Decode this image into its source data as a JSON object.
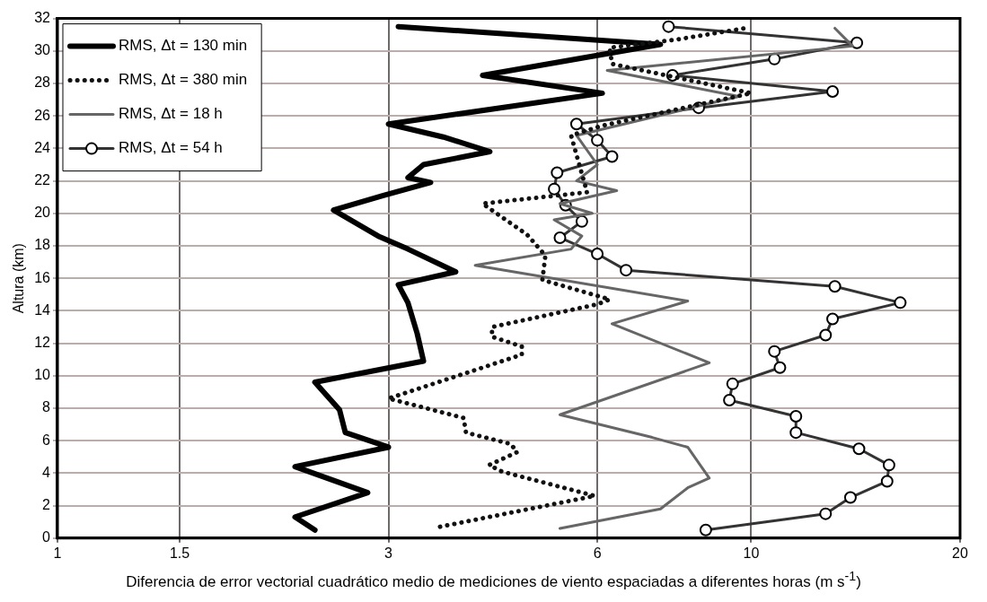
{
  "chart_data": {
    "type": "line",
    "xlabel": "Diferencia de error vectorial cuadrático medio de mediciones de viento espaciadas a diferentes horas (m s$^{-1}$)",
    "ylabel": "Altura (km)",
    "log": "x",
    "xlim": [
      1,
      20
    ],
    "xticks": [
      1,
      1.5,
      3,
      6,
      10,
      20
    ],
    "ylim": [
      0,
      32
    ],
    "yticks": [
      0,
      2,
      4,
      6,
      8,
      10,
      12,
      14,
      16,
      18,
      20,
      22,
      24,
      26,
      28,
      30,
      32
    ],
    "grid": true,
    "legend": "top left",
    "series": [
      {
        "name": "RMS, Δt = 130 min",
        "color": "#000000",
        "line_style": "solid",
        "marker": "none",
        "x": [
          2.35,
          2.2,
          2.8,
          2.2,
          3.0,
          2.6,
          2.55,
          2.35,
          3.37,
          3.3,
          3.2,
          3.1,
          3.75,
          3.2,
          2.9,
          2.5,
          2.95,
          3.45,
          3.2,
          3.37,
          4.2,
          3.6,
          3.0,
          6.1,
          4.1,
          7.4,
          3.1
        ],
        "values": [
          0.5,
          1.3,
          2.8,
          4.4,
          5.6,
          6.5,
          7.9,
          9.6,
          10.9,
          12.6,
          14.5,
          15.6,
          16.4,
          17.8,
          18.6,
          20.2,
          21.1,
          21.9,
          22.2,
          23.0,
          23.8,
          24.7,
          25.5,
          27.4,
          28.5,
          30.4,
          31.5
        ]
      },
      {
        "name": "RMS, Δt = 380 min",
        "color": "#111111",
        "line_style": "dotted",
        "marker": "none",
        "x": [
          3.56,
          5.95,
          4.37,
          4.19,
          4.6,
          4.5,
          3.88,
          3.85,
          3.0,
          3.84,
          4.67,
          4.67,
          4.23,
          4.23,
          6.0,
          6.25,
          5.7,
          5.0,
          5.05,
          4.75,
          4.36,
          4.1,
          5.0,
          5.8,
          5.6,
          5.5,
          6.1,
          10.0,
          6.3,
          6.25,
          7.8,
          9.8
        ],
        "values": [
          0.7,
          2.6,
          4.1,
          4.5,
          5.3,
          5.8,
          6.5,
          7.4,
          8.6,
          10.1,
          11.3,
          11.8,
          12.4,
          13.0,
          14.4,
          14.7,
          15.2,
          15.9,
          17.4,
          18.7,
          19.8,
          20.6,
          21.0,
          21.3,
          23.6,
          24.8,
          25.4,
          27.4,
          29.2,
          30.2,
          30.7,
          31.4
        ]
      },
      {
        "name": "RMS, Δt = 18 h",
        "color": "#666666",
        "line_style": "solid",
        "marker": "none",
        "x": [
          5.3,
          7.4,
          8.1,
          8.7,
          8.1,
          7.2,
          5.3,
          8.7,
          6.3,
          8.1,
          4.0,
          5.5,
          5.7,
          5.2,
          5.9,
          5.3,
          6.4,
          5.6,
          6.0,
          5.6,
          9.6,
          6.2,
          14.0,
          13.2
        ],
        "values": [
          0.6,
          1.8,
          3.1,
          3.7,
          5.6,
          6.2,
          7.6,
          10.8,
          13.2,
          14.6,
          16.8,
          17.8,
          18.6,
          19.6,
          20.0,
          20.6,
          21.4,
          22.0,
          23.0,
          24.8,
          27.2,
          28.8,
          30.3,
          31.4
        ]
      },
      {
        "name": "RMS, Δt = 54 h",
        "color": "#333333",
        "line_style": "solid",
        "marker": "circle",
        "x": [
          8.6,
          12.8,
          13.9,
          15.7,
          15.8,
          14.3,
          11.6,
          11.6,
          9.3,
          9.4,
          11.0,
          10.8,
          12.8,
          13.1,
          16.4,
          13.2,
          6.6,
          6.0,
          5.3,
          5.7,
          5.4,
          5.2,
          5.25,
          6.3,
          6.0,
          5.6,
          8.4,
          13.1,
          7.7,
          10.8,
          14.2,
          7.6
        ],
        "values": [
          0.5,
          1.5,
          2.5,
          3.5,
          4.5,
          5.5,
          6.5,
          7.5,
          8.5,
          9.5,
          10.5,
          11.5,
          12.5,
          13.5,
          14.5,
          15.5,
          16.5,
          17.5,
          18.5,
          19.5,
          20.5,
          21.5,
          22.5,
          23.5,
          24.5,
          25.5,
          26.5,
          27.5,
          28.5,
          29.5,
          30.5,
          31.5
        ]
      }
    ]
  }
}
